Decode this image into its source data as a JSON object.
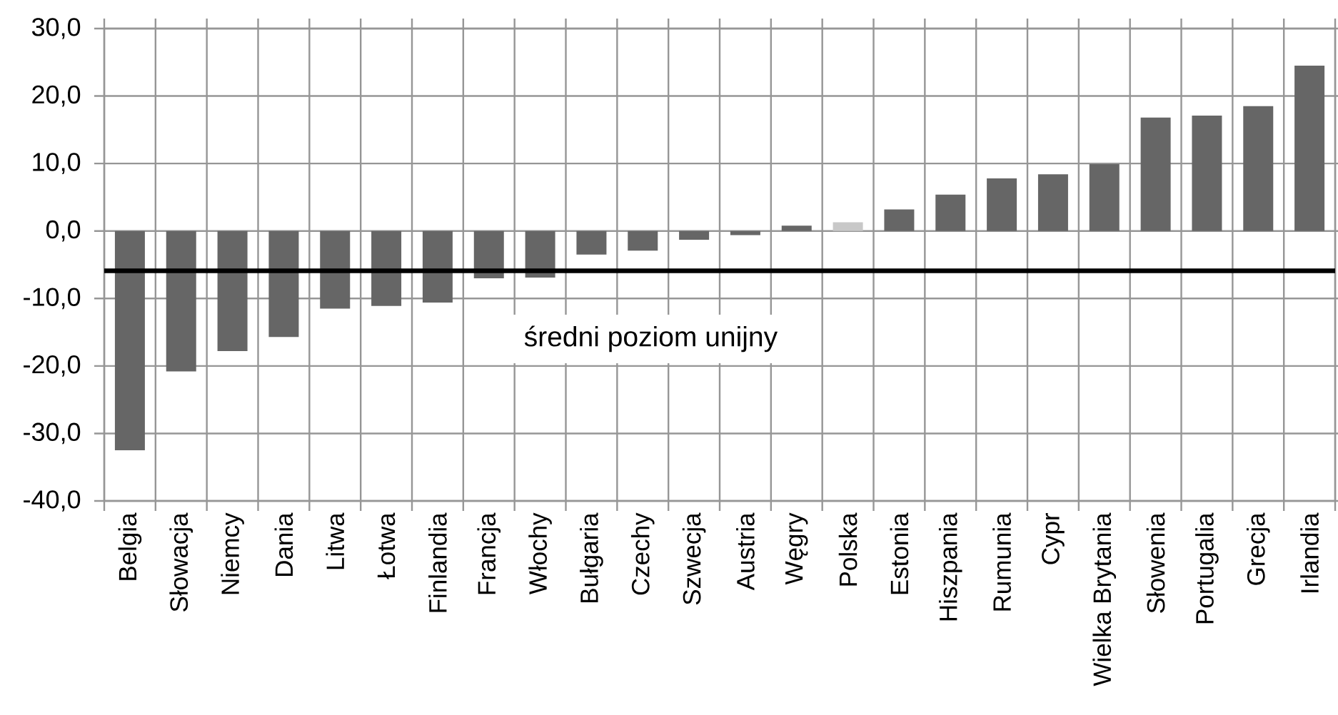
{
  "chart_data": {
    "type": "bar",
    "categories": [
      "Belgia",
      "Słowacja",
      "Niemcy",
      "Dania",
      "Litwa",
      "Łotwa",
      "Finlandia",
      "Francja",
      "Włochy",
      "Bułgaria",
      "Czechy",
      "Szwecja",
      "Austria",
      "Węgry",
      "Polska",
      "Estonia",
      "Hiszpania",
      "Rumunia",
      "Cypr",
      "Wielka Brytania",
      "Słowenia",
      "Portugalia",
      "Grecja",
      "Irlandia"
    ],
    "values": [
      -32.5,
      -20.8,
      -17.8,
      -15.7,
      -11.5,
      -11.1,
      -10.6,
      -7.0,
      -6.9,
      -3.5,
      -2.9,
      -1.3,
      -0.6,
      0.8,
      1.3,
      3.2,
      5.4,
      7.8,
      8.4,
      9.9,
      16.8,
      17.1,
      18.5,
      24.5
    ],
    "colors": [
      "#666666",
      "#666666",
      "#666666",
      "#666666",
      "#666666",
      "#666666",
      "#666666",
      "#666666",
      "#666666",
      "#666666",
      "#666666",
      "#666666",
      "#666666",
      "#666666",
      "#c8c8c8",
      "#666666",
      "#666666",
      "#666666",
      "#666666",
      "#666666",
      "#666666",
      "#666666",
      "#666666",
      "#666666"
    ],
    "ylim": [
      -40,
      30
    ],
    "yticks": [
      {
        "value": -40,
        "label": "-40,0"
      },
      {
        "value": -30,
        "label": "-30,0"
      },
      {
        "value": -20,
        "label": "-20,0"
      },
      {
        "value": -10,
        "label": "-10,0"
      },
      {
        "value": 0,
        "label": "0,0"
      },
      {
        "value": 10,
        "label": "10,0"
      },
      {
        "value": 20,
        "label": "20,0"
      },
      {
        "value": 30,
        "label": "30,0"
      }
    ],
    "grid": true,
    "ref_lines": [
      {
        "axis": "y",
        "value": -5.9,
        "label": "średni poziom unijny",
        "color": "#000000"
      }
    ]
  }
}
